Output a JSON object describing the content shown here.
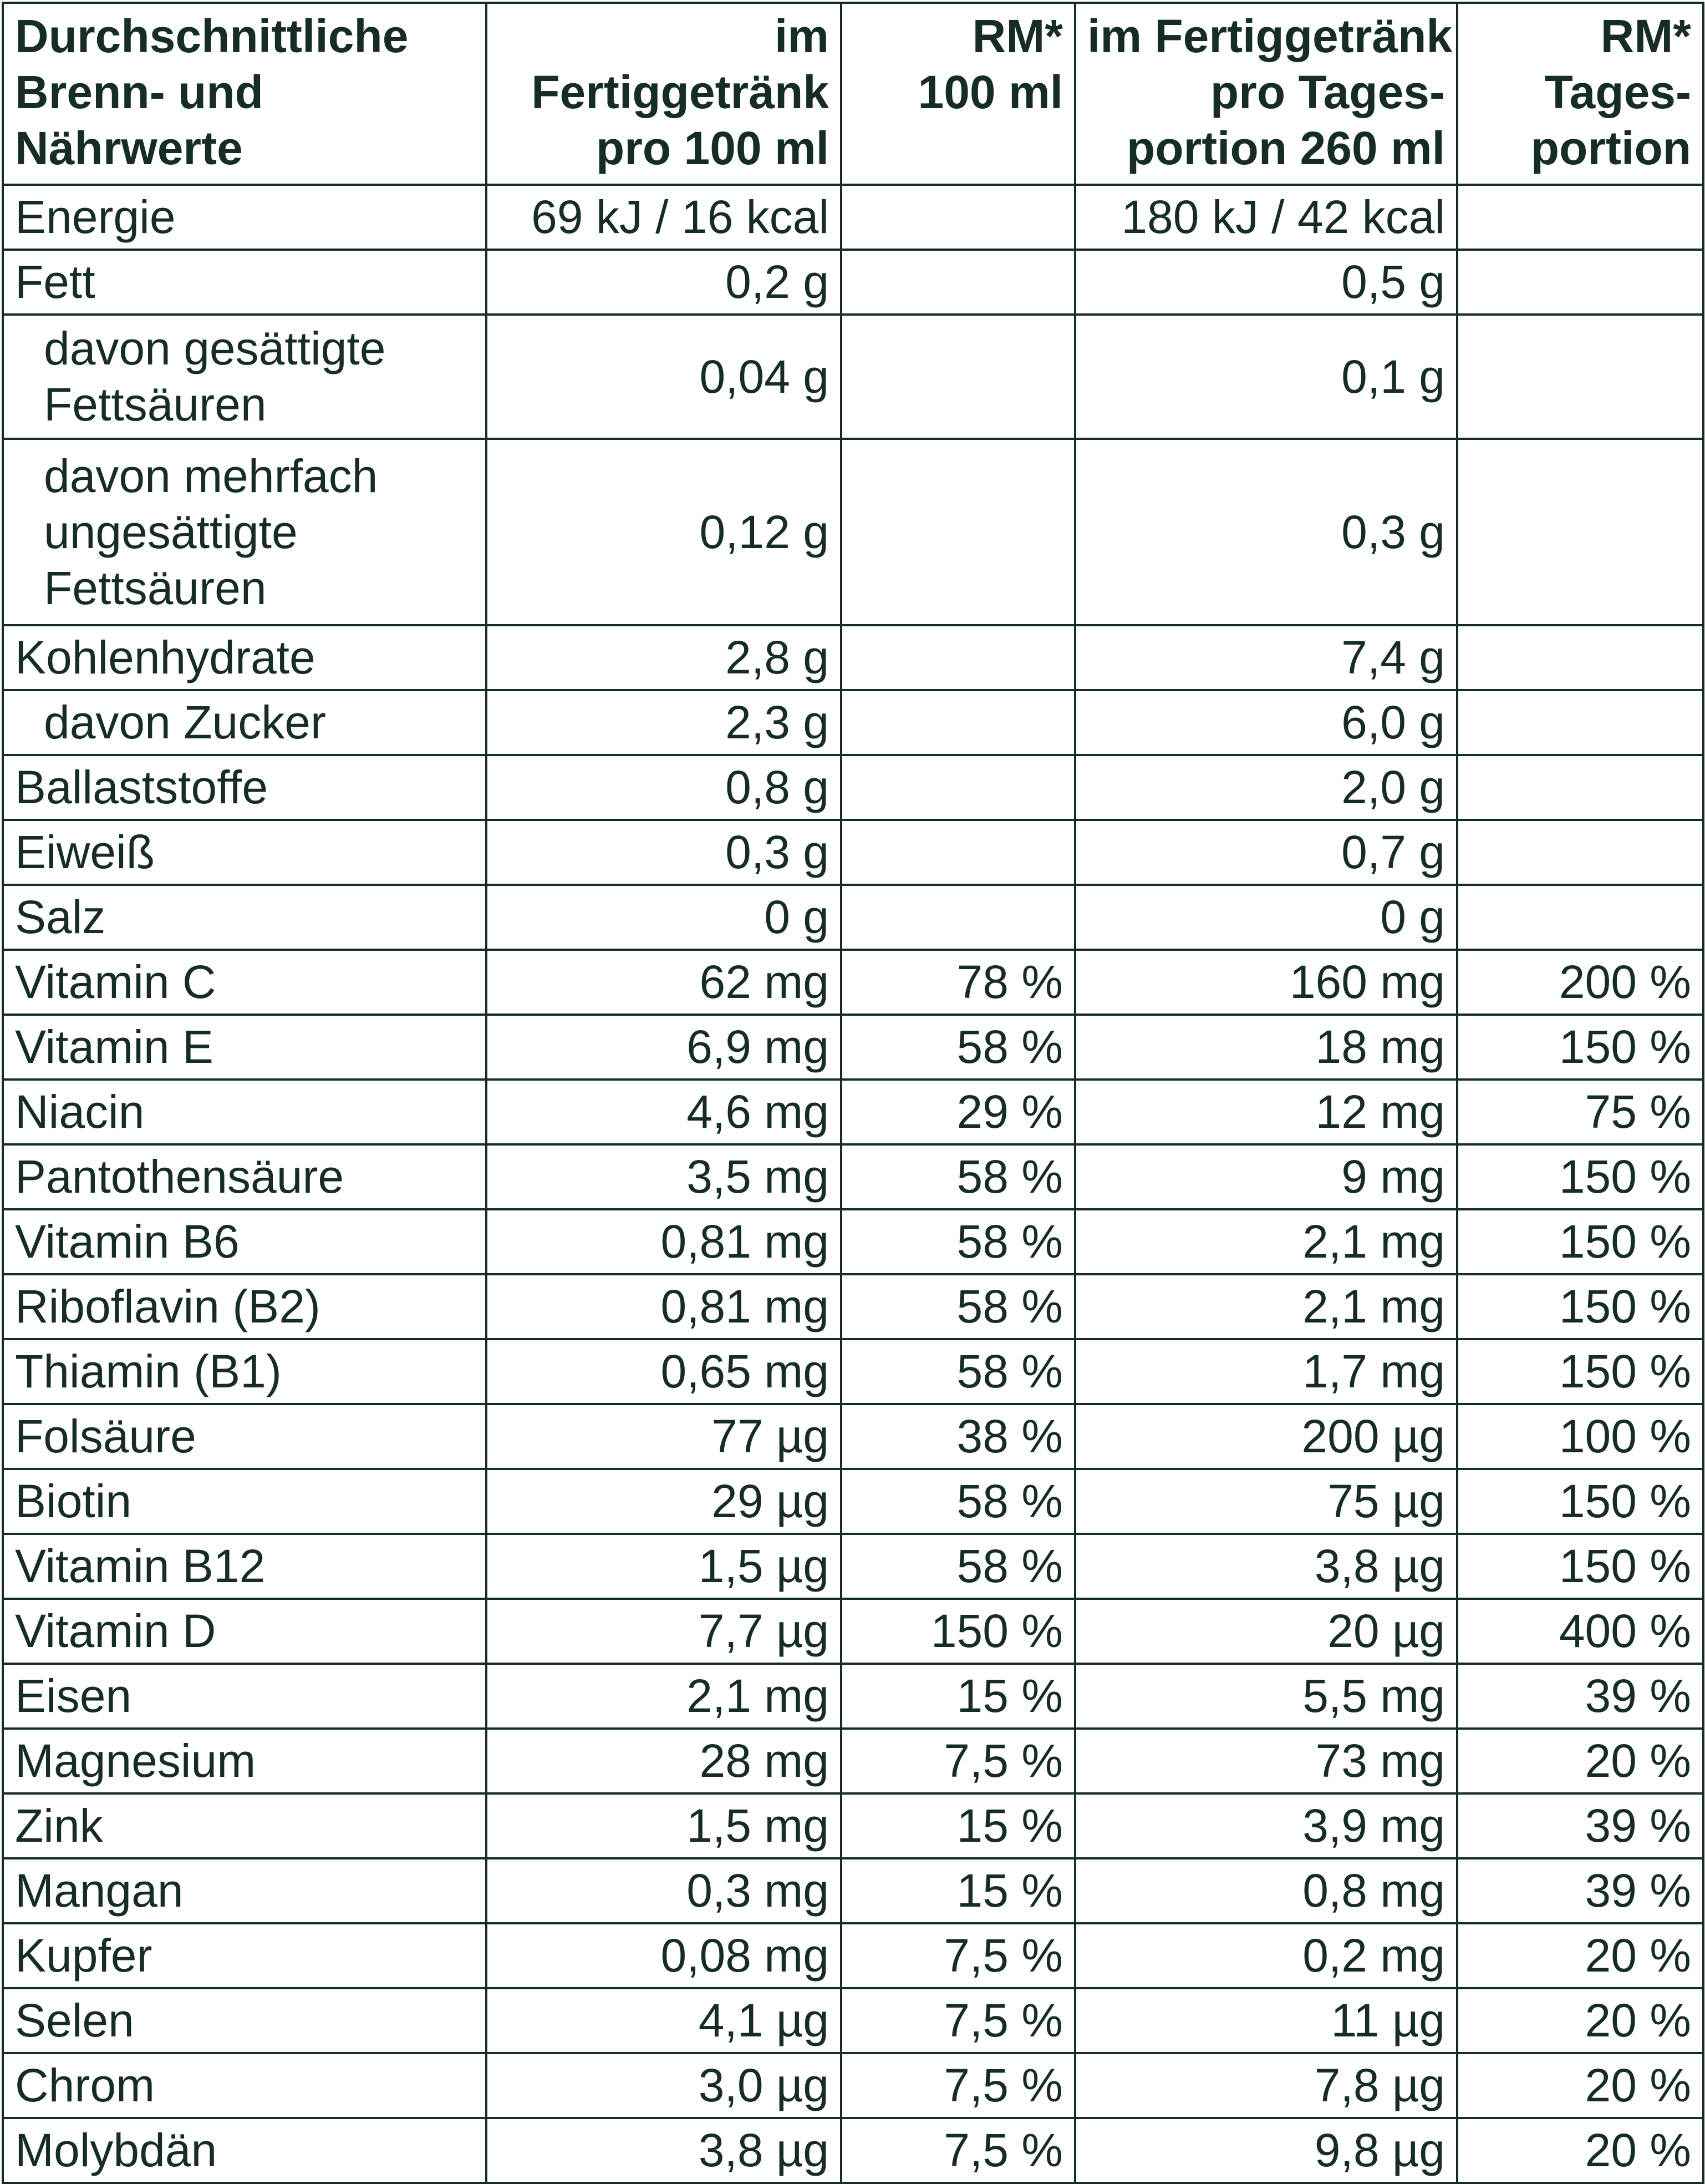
{
  "table": {
    "headers": [
      [
        "Durchschnittliche",
        "Brenn- und",
        "Nährwerte"
      ],
      [
        "im",
        "Fertiggetränk",
        "pro 100 ml"
      ],
      [
        "RM*",
        "100 ml"
      ],
      [
        "im Fertiggetränk",
        "pro Tages-",
        "portion 260 ml"
      ],
      [
        "RM*",
        "Tages-",
        "portion"
      ]
    ],
    "rows": [
      {
        "label": [
          "Energie"
        ],
        "indent": false,
        "per100": "69 kJ / 16 kcal",
        "rm100": "",
        "perDay": "180 kJ / 42 kcal",
        "rmDay": ""
      },
      {
        "label": [
          "Fett"
        ],
        "indent": false,
        "per100": "0,2 g",
        "rm100": "",
        "perDay": "0,5 g",
        "rmDay": ""
      },
      {
        "label": [
          "davon gesättigte",
          "Fettsäuren"
        ],
        "indent": true,
        "per100": "0,04 g",
        "rm100": "",
        "perDay": "0,1 g",
        "rmDay": ""
      },
      {
        "label": [
          "davon mehrfach",
          "ungesättigte",
          "Fettsäuren"
        ],
        "indent": true,
        "per100": "0,12 g",
        "rm100": "",
        "perDay": "0,3 g",
        "rmDay": ""
      },
      {
        "label": [
          "Kohlenhydrate"
        ],
        "indent": false,
        "per100": "2,8 g",
        "rm100": "",
        "perDay": "7,4 g",
        "rmDay": ""
      },
      {
        "label": [
          "davon Zucker"
        ],
        "indent": true,
        "per100": "2,3 g",
        "rm100": "",
        "perDay": "6,0 g",
        "rmDay": ""
      },
      {
        "label": [
          "Ballaststoffe"
        ],
        "indent": false,
        "per100": "0,8 g",
        "rm100": "",
        "perDay": "2,0 g",
        "rmDay": ""
      },
      {
        "label": [
          "Eiweiß"
        ],
        "indent": false,
        "per100": "0,3 g",
        "rm100": "",
        "perDay": "0,7 g",
        "rmDay": ""
      },
      {
        "label": [
          "Salz"
        ],
        "indent": false,
        "per100": "0 g",
        "rm100": "",
        "perDay": "0 g",
        "rmDay": ""
      },
      {
        "label": [
          "Vitamin C"
        ],
        "indent": false,
        "per100": "62 mg",
        "rm100": "78 %",
        "perDay": "160 mg",
        "rmDay": "200 %"
      },
      {
        "label": [
          "Vitamin E"
        ],
        "indent": false,
        "per100": "6,9 mg",
        "rm100": "58 %",
        "perDay": "18 mg",
        "rmDay": "150 %"
      },
      {
        "label": [
          "Niacin"
        ],
        "indent": false,
        "per100": "4,6 mg",
        "rm100": "29 %",
        "perDay": "12 mg",
        "rmDay": "75 %"
      },
      {
        "label": [
          "Pantothensäure"
        ],
        "indent": false,
        "per100": "3,5 mg",
        "rm100": "58 %",
        "perDay": "9 mg",
        "rmDay": "150 %"
      },
      {
        "label": [
          "Vitamin B6"
        ],
        "indent": false,
        "per100": "0,81 mg",
        "rm100": "58 %",
        "perDay": "2,1 mg",
        "rmDay": "150 %"
      },
      {
        "label": [
          "Riboflavin (B2)"
        ],
        "indent": false,
        "per100": "0,81 mg",
        "rm100": "58 %",
        "perDay": "2,1 mg",
        "rmDay": "150 %"
      },
      {
        "label": [
          "Thiamin (B1)"
        ],
        "indent": false,
        "per100": "0,65 mg",
        "rm100": "58 %",
        "perDay": "1,7 mg",
        "rmDay": "150 %"
      },
      {
        "label": [
          "Folsäure"
        ],
        "indent": false,
        "per100": "77 µg",
        "rm100": "38 %",
        "perDay": "200 µg",
        "rmDay": "100 %"
      },
      {
        "label": [
          "Biotin"
        ],
        "indent": false,
        "per100": "29 µg",
        "rm100": "58 %",
        "perDay": "75 µg",
        "rmDay": "150 %"
      },
      {
        "label": [
          "Vitamin B12"
        ],
        "indent": false,
        "per100": "1,5 µg",
        "rm100": "58 %",
        "perDay": "3,8 µg",
        "rmDay": "150 %"
      },
      {
        "label": [
          "Vitamin D"
        ],
        "indent": false,
        "per100": "7,7 µg",
        "rm100": "150 %",
        "perDay": "20 µg",
        "rmDay": "400 %"
      },
      {
        "label": [
          "Eisen"
        ],
        "indent": false,
        "per100": "2,1 mg",
        "rm100": "15 %",
        "perDay": "5,5 mg",
        "rmDay": "39 %"
      },
      {
        "label": [
          "Magnesium"
        ],
        "indent": false,
        "per100": "28 mg",
        "rm100": "7,5 %",
        "perDay": "73 mg",
        "rmDay": "20 %"
      },
      {
        "label": [
          "Zink"
        ],
        "indent": false,
        "per100": "1,5 mg",
        "rm100": "15 %",
        "perDay": "3,9 mg",
        "rmDay": "39 %"
      },
      {
        "label": [
          "Mangan"
        ],
        "indent": false,
        "per100": "0,3 mg",
        "rm100": "15 %",
        "perDay": "0,8 mg",
        "rmDay": "39 %"
      },
      {
        "label": [
          "Kupfer"
        ],
        "indent": false,
        "per100": "0,08 mg",
        "rm100": "7,5 %",
        "perDay": "0,2 mg",
        "rmDay": "20 %"
      },
      {
        "label": [
          "Selen"
        ],
        "indent": false,
        "per100": "4,1 µg",
        "rm100": "7,5 %",
        "perDay": "11 µg",
        "rmDay": "20 %"
      },
      {
        "label": [
          "Chrom"
        ],
        "indent": false,
        "per100": "3,0 µg",
        "rm100": "7,5 %",
        "perDay": "7,8 µg",
        "rmDay": "20 %"
      },
      {
        "label": [
          "Molybdän"
        ],
        "indent": false,
        "per100": "3,8 µg",
        "rm100": "7,5 %",
        "perDay": "9,8 µg",
        "rmDay": "20 %"
      }
    ]
  },
  "colors": {
    "ink": "#152d22",
    "background": "#ffffff"
  }
}
